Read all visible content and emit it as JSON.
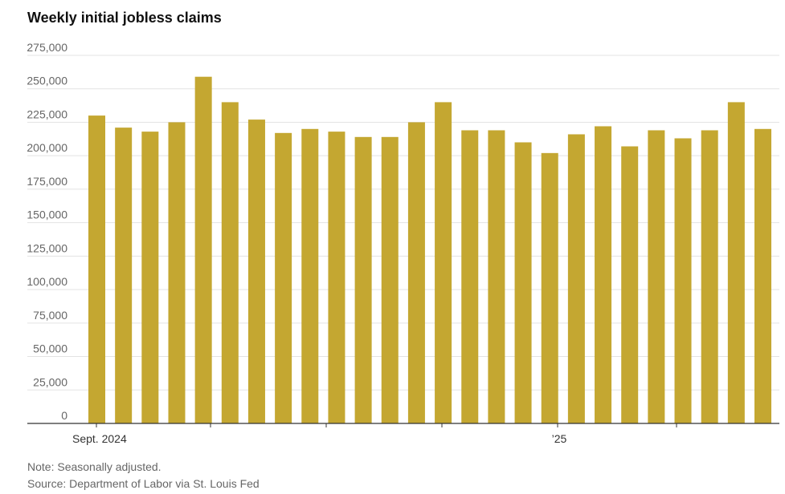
{
  "header": {
    "title": "Weekly initial jobless claims"
  },
  "footer": {
    "note": "Note: Seasonally adjusted.",
    "source": "Source: Department of Labor via St. Louis Fed"
  },
  "colors": {
    "bar": "#c4a731",
    "grid": "#e3e3e3",
    "axis": "#333333",
    "tick_text": "#666666"
  },
  "chart_data": {
    "type": "bar",
    "title": "Weekly initial jobless claims",
    "xlabel": "",
    "ylabel": "",
    "ylim": [
      0,
      275000
    ],
    "yticks": [
      0,
      25000,
      50000,
      75000,
      100000,
      125000,
      150000,
      175000,
      200000,
      225000,
      250000,
      275000
    ],
    "ytick_labels": [
      "0",
      "25,000",
      "50,000",
      "75,000",
      "100,000",
      "125,000",
      "150,000",
      "175,000",
      "200,000",
      "225,000",
      "250,000",
      "275,000"
    ],
    "xtick_labels": [
      {
        "label": "Sept. 2024",
        "index": 0
      },
      {
        "label": "’25",
        "index": 17
      }
    ],
    "minor_tick_indices": [
      0,
      4,
      9,
      13,
      17,
      22
    ],
    "values": [
      230000,
      221000,
      218000,
      225000,
      259000,
      240000,
      227000,
      217000,
      220000,
      218000,
      214000,
      214000,
      225000,
      240000,
      219000,
      219000,
      210000,
      202000,
      216000,
      222000,
      207000,
      219000,
      213000,
      219000,
      240000,
      220000
    ]
  }
}
